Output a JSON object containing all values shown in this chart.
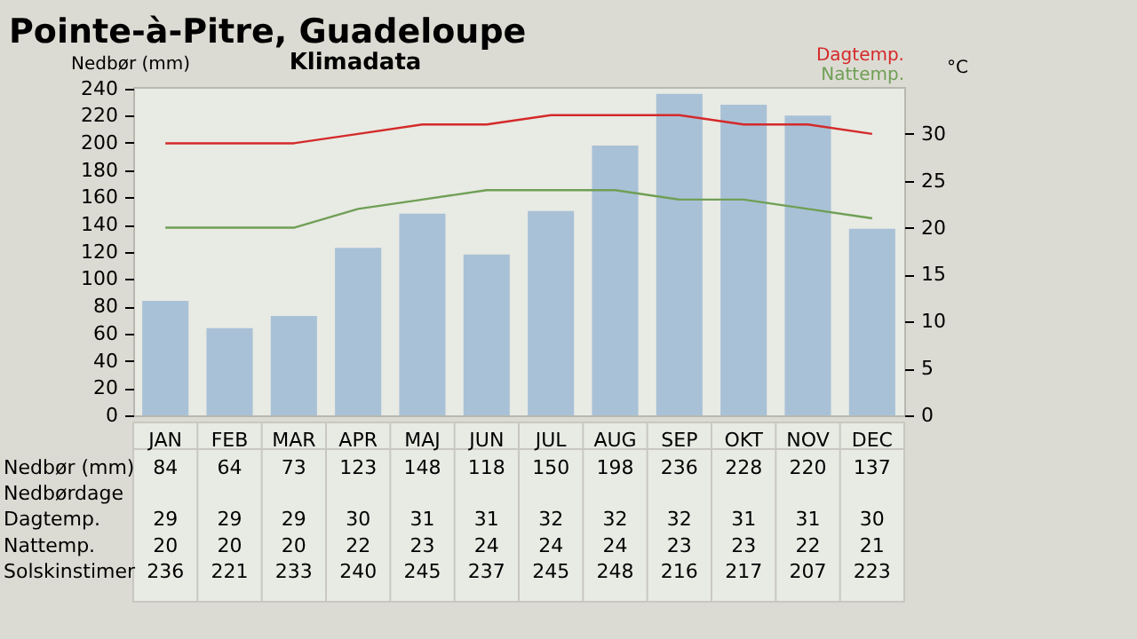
{
  "chart_data": {
    "type": "bar",
    "title": "Pointe-à-Pitre, Guadeloupe",
    "subtitle": "Klimadata",
    "ylabel": "Nedbør (mm)",
    "y2label": "°C",
    "categories": [
      "JAN",
      "FEB",
      "MAR",
      "APR",
      "MAJ",
      "JUN",
      "JUL",
      "AUG",
      "SEP",
      "OKT",
      "NOV",
      "DEC"
    ],
    "ylim": [
      0,
      241
    ],
    "yticks": [
      0,
      20,
      40,
      60,
      80,
      100,
      120,
      140,
      160,
      180,
      200,
      220,
      240
    ],
    "y2lim": [
      0,
      35
    ],
    "y2ticks": [
      0,
      5,
      10,
      15,
      20,
      25,
      30
    ],
    "data_labels": true,
    "grid": false,
    "series": [
      {
        "name": "Nedbør (mm)",
        "color": "#a9c1d6",
        "values": [
          84,
          64,
          73,
          123,
          148,
          118,
          150,
          198,
          236,
          228,
          220,
          137
        ]
      },
      {
        "name": "Nedbørdage",
        "type": "other",
        "values": [
          null,
          null,
          null,
          null,
          null,
          null,
          null,
          null,
          null,
          null,
          null,
          null
        ]
      },
      {
        "name": "Dagtemp.",
        "type": "line",
        "axis": "y2",
        "color": "#d42a2a",
        "values": [
          29,
          29,
          29,
          30,
          31,
          31,
          32,
          32,
          32,
          31,
          31,
          30
        ]
      },
      {
        "name": "Nattemp.",
        "type": "line",
        "axis": "y2",
        "color": "#6f9f55",
        "values": [
          20,
          20,
          20,
          22,
          23,
          24,
          24,
          24,
          23,
          23,
          22,
          21
        ]
      },
      {
        "name": "Solskinstimer",
        "type": "other",
        "values": [
          null,
          null,
          null,
          null,
          null,
          null,
          null,
          null,
          null,
          null,
          null,
          null
        ],
        "value_labels": [
          "236",
          "221",
          "233",
          "240",
          "245",
          "237",
          "245",
          "248",
          "216",
          "217",
          "207",
          "223"
        ]
      }
    ]
  }
}
